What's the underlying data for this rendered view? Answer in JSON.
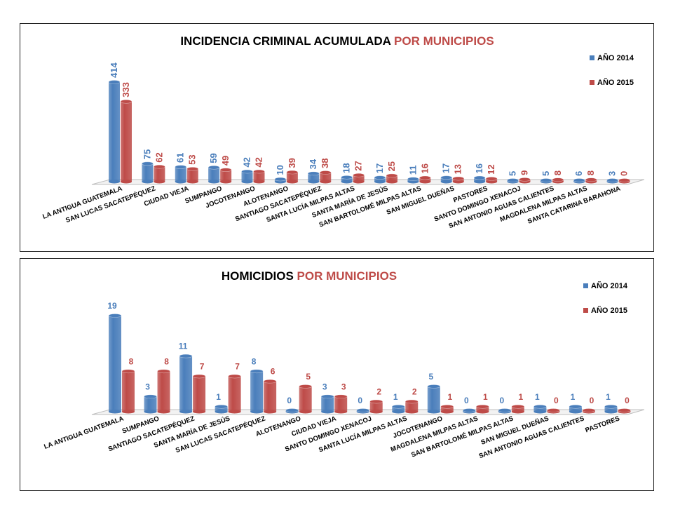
{
  "colors": {
    "y2014": "#4a7ebb",
    "y2015": "#be4b48",
    "title_dark": "#000000"
  },
  "chart_data": [
    {
      "type": "bar",
      "title_part1": "INCIDENCIA CRIMINAL ACUMULADA",
      "title_part2": "POR MUNICIPIOS",
      "categories": [
        "LA ANTIGUA GUATEMALA",
        "SAN LUCAS SACATEPÉQUEZ",
        "CIUDAD VIEJA",
        "SUMPANGO",
        "JOCOTENANGO",
        "ALOTENANGO",
        "SANTIAGO SACATEPÉQUEZ",
        "SANTA LUCÍA MILPAS ALTAS",
        "SANTA MARÍA DE JESÚS",
        "SAN BARTOLOMÉ MILPAS ALTAS",
        "SAN MIGUEL DUEÑAS",
        "PASTORES",
        "SANTO DOMINGO XENACOJ",
        "SAN ANTONIO AGUAS CALIENTES",
        "MAGDALENA MILPAS ALTAS",
        "SANTA CATARINA BARAHONA"
      ],
      "series": [
        {
          "name": "AÑO 2014",
          "values": [
            414,
            75,
            61,
            59,
            42,
            10,
            34,
            18,
            17,
            11,
            17,
            16,
            5,
            5,
            6,
            3
          ]
        },
        {
          "name": "AÑO 2015",
          "values": [
            333,
            62,
            53,
            49,
            42,
            39,
            38,
            27,
            25,
            16,
            13,
            12,
            9,
            8,
            8,
            0
          ]
        }
      ],
      "ylim": [
        0,
        414
      ],
      "legend": "top-right"
    },
    {
      "type": "bar",
      "title_part1": "HOMICIDIOS",
      "title_part2": "POR MUNICIPIOS",
      "categories": [
        "LA ANTIGUA GUATEMALA",
        "SUMPANGO",
        "SANTIAGO SACATEPÉQUEZ",
        "SANTA MARÍA DE JESÚS",
        "SAN LUCAS SACATEPÉQUEZ",
        "ALOTENANGO",
        "CIUDAD VIEJA",
        "SANTO DOMINGO XENACOJ",
        "SANTA LUCÍA MILPAS ALTAS",
        "JOCOTENANGO",
        "MAGDALENA MILPAS ALTAS",
        "SAN BARTOLOMÉ MILPAS ALTAS",
        "SAN MIGUEL DUEÑAS",
        "SAN ANTONIO AGUAS CALIENTES",
        "PASTORES"
      ],
      "series": [
        {
          "name": "AÑO 2014",
          "values": [
            19,
            3,
            11,
            1,
            8,
            0,
            3,
            0,
            1,
            5,
            0,
            0,
            1,
            1,
            1
          ]
        },
        {
          "name": "AÑO 2015",
          "values": [
            8,
            8,
            7,
            7,
            6,
            5,
            3,
            2,
            2,
            1,
            1,
            1,
            0,
            0,
            0
          ]
        }
      ],
      "ylim": [
        0,
        19
      ],
      "legend": "top-right"
    }
  ]
}
